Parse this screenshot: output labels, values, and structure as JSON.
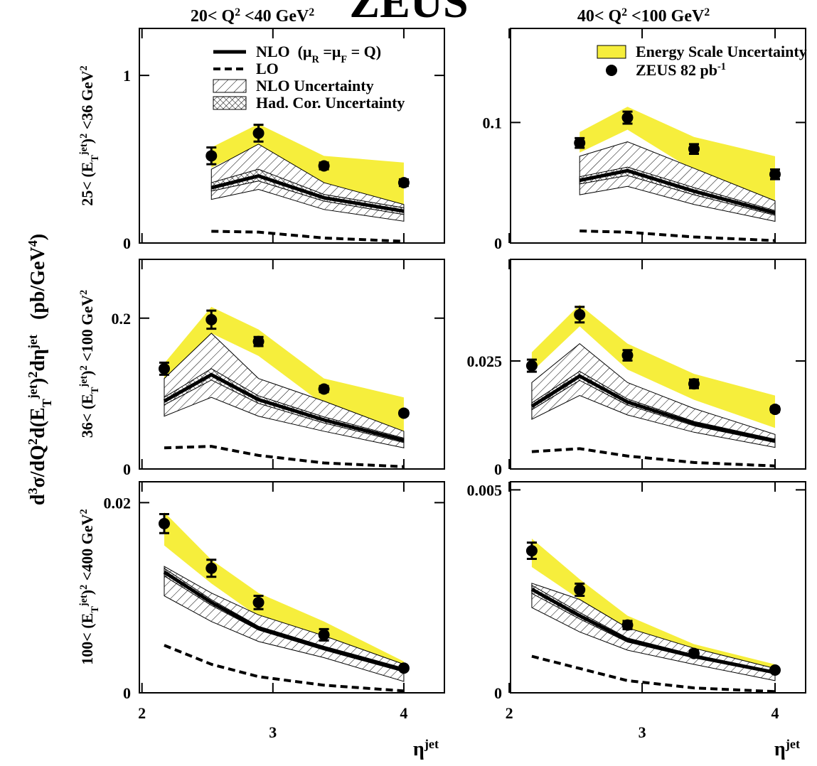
{
  "title": "ZEUS",
  "column_labels": [
    [
      {
        "text": "20< Q"
      },
      {
        "text": "2",
        "pos": "sup"
      },
      {
        "text": " <40 GeV"
      },
      {
        "text": "2",
        "pos": "sup"
      }
    ],
    [
      {
        "text": "40< Q"
      },
      {
        "text": "2",
        "pos": "sup"
      },
      {
        "text": " <100 GeV"
      },
      {
        "text": "2",
        "pos": "sup"
      }
    ]
  ],
  "row_labels": [
    [
      {
        "text": "25< (E"
      },
      {
        "text": "T",
        "pos": "sub"
      },
      {
        "text": "jet",
        "pos": "sup"
      },
      {
        "text": ")"
      },
      {
        "text": "2",
        "pos": "sup"
      },
      {
        "text": " <36 GeV"
      },
      {
        "text": "2",
        "pos": "sup"
      }
    ],
    [
      {
        "text": "36< (E"
      },
      {
        "text": "T",
        "pos": "sub"
      },
      {
        "text": "jet",
        "pos": "sup"
      },
      {
        "text": ")"
      },
      {
        "text": "2",
        "pos": "sup"
      },
      {
        "text": " <100 GeV"
      },
      {
        "text": "2",
        "pos": "sup"
      }
    ],
    [
      {
        "text": "100< (E"
      },
      {
        "text": "T",
        "pos": "sub"
      },
      {
        "text": "jet",
        "pos": "sup"
      },
      {
        "text": ")"
      },
      {
        "text": "2",
        "pos": "sup"
      },
      {
        "text": " <400 GeV"
      },
      {
        "text": "2",
        "pos": "sup"
      }
    ]
  ],
  "y_label": [
    {
      "text": "d"
    },
    {
      "text": "3",
      "pos": "sup"
    },
    {
      "text": "σ/dQ"
    },
    {
      "text": "2",
      "pos": "sup"
    },
    {
      "text": "d(E"
    },
    {
      "text": "T",
      "pos": "sub"
    },
    {
      "text": "jet",
      "pos": "sup"
    },
    {
      "text": ")"
    },
    {
      "text": "2",
      "pos": "sup"
    },
    {
      "text": "dη"
    },
    {
      "text": "jet",
      "pos": "sup"
    },
    {
      "text": "   (pb/GeV"
    },
    {
      "text": "4",
      "pos": "sup"
    },
    {
      "text": ")"
    }
  ],
  "chart_data": [
    {
      "type": "band-line",
      "xlim": [
        1.98,
        4.31
      ],
      "xticks": [
        2,
        3,
        4
      ],
      "ylim": [
        0,
        1.28
      ],
      "yticks": [
        0,
        1
      ],
      "show_xtick_labels": false,
      "x": [
        2.53,
        2.89,
        3.39,
        4.0
      ],
      "data": {
        "values": [
          0.52,
          0.655,
          0.46,
          0.36
        ],
        "errors": [
          0.05,
          0.05,
          0.02,
          0.02
        ],
        "color": "#000000"
      },
      "nlo": {
        "values": [
          0.33,
          0.4,
          0.27,
          0.19
        ],
        "color": "#000000"
      },
      "lo": {
        "values": [
          0.07,
          0.065,
          0.03,
          0.01
        ],
        "color": "#000000"
      },
      "nlo_unc": {
        "low": [
          0.26,
          0.32,
          0.2,
          0.13
        ],
        "high": [
          0.44,
          0.59,
          0.36,
          0.23
        ]
      },
      "had_unc": {
        "low": [
          0.31,
          0.37,
          0.25,
          0.17
        ],
        "high": [
          0.36,
          0.44,
          0.29,
          0.21
        ]
      },
      "escale": {
        "low": [
          0.45,
          0.58,
          0.32,
          0.2
        ],
        "high": [
          0.57,
          0.71,
          0.52,
          0.48
        ],
        "color": "#f6ee3c"
      },
      "legend": [
        {
          "label": [
            {
              "text": "NLO  (μ"
            },
            {
              "text": "R",
              "pos": "sub"
            },
            {
              "text": " =μ"
            },
            {
              "text": "F",
              "pos": "sub"
            },
            {
              "text": " = Q)"
            }
          ],
          "style": "thick-line"
        },
        {
          "label": [
            {
              "text": "LO"
            }
          ],
          "style": "dashed-line"
        },
        {
          "label": [
            {
              "text": "NLO Uncertainty"
            }
          ],
          "style": "hatch"
        },
        {
          "label": [
            {
              "text": "Had. Cor. Uncertainty"
            }
          ],
          "style": "cross-hatch"
        }
      ]
    },
    {
      "type": "band-line",
      "xlim": [
        2.01,
        4.23
      ],
      "xticks": [
        2,
        3,
        4
      ],
      "ylim": [
        0,
        0.178
      ],
      "yticks": [
        0,
        0.1
      ],
      "show_xtick_labels": false,
      "x": [
        2.53,
        2.89,
        3.39,
        4.0
      ],
      "data": {
        "values": [
          0.083,
          0.104,
          0.078,
          0.057
        ],
        "errors": [
          0.004,
          0.005,
          0.004,
          0.004
        ],
        "color": "#000000"
      },
      "nlo": {
        "values": [
          0.052,
          0.06,
          0.043,
          0.025
        ],
        "color": "#000000"
      },
      "lo": {
        "values": [
          0.01,
          0.009,
          0.005,
          0.002
        ],
        "color": "#000000"
      },
      "nlo_unc": {
        "low": [
          0.04,
          0.047,
          0.032,
          0.018
        ],
        "high": [
          0.072,
          0.084,
          0.062,
          0.035
        ]
      },
      "had_unc": {
        "low": [
          0.049,
          0.056,
          0.04,
          0.023
        ],
        "high": [
          0.055,
          0.063,
          0.046,
          0.027
        ]
      },
      "escale": {
        "low": [
          0.075,
          0.094,
          0.06,
          0.03
        ],
        "high": [
          0.092,
          0.113,
          0.088,
          0.072
        ],
        "color": "#f6ee3c"
      },
      "legend": [
        {
          "label": [
            {
              "text": "Energy Scale Uncertainty"
            }
          ],
          "style": "yellow-fill"
        },
        {
          "label": [
            {
              "text": "ZEUS 82 pb"
            },
            {
              "text": "-1",
              "pos": "sup"
            }
          ],
          "style": "marker"
        }
      ]
    },
    {
      "type": "band-line",
      "xlim": [
        1.98,
        4.31
      ],
      "xticks": [
        2,
        3,
        4
      ],
      "ylim": [
        0,
        0.278
      ],
      "yticks": [
        0,
        0.2
      ],
      "show_xtick_labels": false,
      "x": [
        2.17,
        2.53,
        2.89,
        3.39,
        4.0
      ],
      "data": {
        "values": [
          0.133,
          0.198,
          0.169,
          0.106,
          0.074
        ],
        "errors": [
          0.008,
          0.012,
          0.006,
          0.004,
          0.003
        ],
        "color": "#000000"
      },
      "nlo": {
        "values": [
          0.09,
          0.125,
          0.092,
          0.065,
          0.038
        ],
        "color": "#000000"
      },
      "lo": {
        "values": [
          0.028,
          0.03,
          0.018,
          0.008,
          0.003
        ],
        "color": "#000000"
      },
      "nlo_unc": {
        "low": [
          0.07,
          0.095,
          0.07,
          0.05,
          0.028
        ],
        "high": [
          0.12,
          0.18,
          0.12,
          0.09,
          0.05
        ]
      },
      "had_unc": {
        "low": [
          0.085,
          0.118,
          0.087,
          0.061,
          0.035
        ],
        "high": [
          0.095,
          0.133,
          0.097,
          0.069,
          0.041
        ]
      },
      "escale": {
        "low": [
          0.12,
          0.18,
          0.15,
          0.085,
          0.05
        ],
        "high": [
          0.14,
          0.215,
          0.185,
          0.12,
          0.095
        ],
        "color": "#f6ee3c"
      }
    },
    {
      "type": "band-line",
      "xlim": [
        2.01,
        4.23
      ],
      "xticks": [
        2,
        3,
        4
      ],
      "ylim": [
        0,
        0.0485
      ],
      "yticks": [
        0,
        0.025
      ],
      "show_xtick_labels": false,
      "x": [
        2.17,
        2.53,
        2.89,
        3.39,
        4.0
      ],
      "data": {
        "values": [
          0.0239,
          0.0357,
          0.0263,
          0.0197,
          0.0138
        ],
        "errors": [
          0.0014,
          0.0018,
          0.0012,
          0.001,
          0.0006
        ],
        "color": "#000000"
      },
      "nlo": {
        "values": [
          0.0145,
          0.0215,
          0.0155,
          0.0105,
          0.0065
        ],
        "color": "#000000"
      },
      "lo": {
        "values": [
          0.004,
          0.0047,
          0.003,
          0.0015,
          0.0007
        ],
        "color": "#000000"
      },
      "nlo_unc": {
        "low": [
          0.0115,
          0.017,
          0.0125,
          0.0085,
          0.005
        ],
        "high": [
          0.02,
          0.029,
          0.02,
          0.014,
          0.008
        ]
      },
      "had_unc": {
        "low": [
          0.0137,
          0.0205,
          0.0148,
          0.01,
          0.0061
        ],
        "high": [
          0.0153,
          0.0226,
          0.0162,
          0.011,
          0.0069
        ]
      },
      "escale": {
        "low": [
          0.0225,
          0.033,
          0.023,
          0.016,
          0.0095
        ],
        "high": [
          0.027,
          0.038,
          0.029,
          0.022,
          0.017
        ],
        "color": "#f6ee3c"
      }
    },
    {
      "type": "band-line",
      "xlim": [
        1.98,
        4.31
      ],
      "xticks": [
        2,
        3,
        4
      ],
      "ylim": [
        0,
        0.0222
      ],
      "yticks": [
        0,
        0.02
      ],
      "show_xtick_labels": true,
      "xlabel": [
        {
          "text": "η"
        },
        {
          "text": "jet",
          "pos": "sup"
        }
      ],
      "x": [
        2.17,
        2.53,
        2.89,
        3.39,
        4.0
      ],
      "data": {
        "values": [
          0.0178,
          0.0131,
          0.0095,
          0.0061,
          0.0026
        ],
        "errors": [
          0.001,
          0.0009,
          0.0007,
          0.0006,
          0.0002
        ],
        "color": "#000000"
      },
      "nlo": {
        "values": [
          0.0127,
          0.0095,
          0.0068,
          0.0047,
          0.0024
        ],
        "color": "#000000"
      },
      "lo": {
        "values": [
          0.005,
          0.003,
          0.0017,
          0.0008,
          0.0002
        ],
        "color": "#000000"
      },
      "nlo_unc": {
        "low": [
          0.0102,
          0.0075,
          0.0054,
          0.0037,
          0.0012
        ],
        "high": [
          0.0133,
          0.0105,
          0.0082,
          0.006,
          0.003
        ]
      },
      "had_unc": {
        "low": [
          0.0123,
          0.0092,
          0.0066,
          0.0045,
          0.0022
        ],
        "high": [
          0.0131,
          0.0098,
          0.007,
          0.0049,
          0.0026
        ]
      },
      "escale": {
        "low": [
          0.0155,
          0.0115,
          0.008,
          0.005,
          0.002
        ],
        "high": [
          0.019,
          0.014,
          0.0105,
          0.0075,
          0.0033
        ],
        "color": "#f6ee3c"
      }
    },
    {
      "type": "band-line",
      "xlim": [
        2.01,
        4.23
      ],
      "xticks": [
        2,
        3,
        4
      ],
      "ylim": [
        0,
        0.0052
      ],
      "yticks": [
        0,
        0.005
      ],
      "show_xtick_labels": true,
      "xlabel": [
        {
          "text": "η"
        },
        {
          "text": "jet",
          "pos": "sup"
        }
      ],
      "x": [
        2.17,
        2.53,
        2.89,
        3.39,
        4.0
      ],
      "data": {
        "values": [
          0.0035,
          0.00254,
          0.00167,
          0.00097,
          0.00056
        ],
        "errors": [
          0.0002,
          0.00015,
          0.0001,
          7e-05,
          4e-05
        ],
        "color": "#000000"
      },
      "nlo": {
        "values": [
          0.00255,
          0.0019,
          0.0013,
          0.0009,
          0.0005
        ],
        "color": "#000000"
      },
      "lo": {
        "values": [
          0.0009,
          0.0006,
          0.0003,
          0.00012,
          3e-05
        ],
        "color": "#000000"
      },
      "nlo_unc": {
        "low": [
          0.0021,
          0.0015,
          0.00105,
          0.0007,
          0.0003
        ],
        "high": [
          0.0027,
          0.0023,
          0.0016,
          0.0011,
          0.0006
        ]
      },
      "had_unc": {
        "low": [
          0.00245,
          0.00182,
          0.00125,
          0.00086,
          0.00047
        ],
        "high": [
          0.00265,
          0.00198,
          0.00135,
          0.00094,
          0.00053
        ]
      },
      "escale": {
        "low": [
          0.0031,
          0.0023,
          0.0015,
          0.0009,
          0.0005
        ],
        "high": [
          0.0038,
          0.0028,
          0.0019,
          0.0012,
          0.0007
        ],
        "color": "#f6ee3c"
      }
    }
  ]
}
